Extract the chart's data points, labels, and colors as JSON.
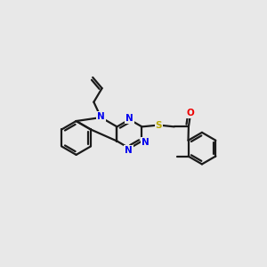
{
  "bg_color": "#e8e8e8",
  "bond_color": "#1a1a1a",
  "N_color": "#0000ee",
  "O_color": "#ee0000",
  "S_color": "#bbaa00",
  "lw": 1.6,
  "dbl_off": 0.12,
  "figsize": [
    3.0,
    3.0
  ],
  "dpi": 100,
  "xlim": [
    0,
    10
  ],
  "ylim": [
    0,
    10
  ],
  "font_size": 7.5
}
